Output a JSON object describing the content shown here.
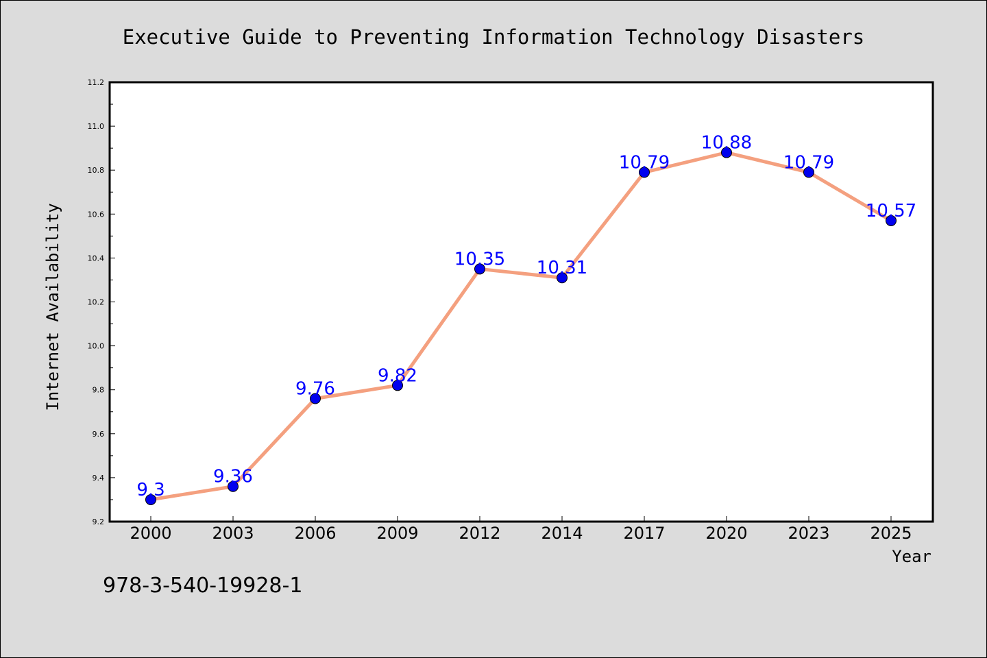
{
  "chart_data": {
    "type": "line",
    "title": "Executive Guide to Preventing Information Technology Disasters",
    "xlabel": "Year",
    "ylabel": "Internet Availability",
    "categories": [
      "2000",
      "2003",
      "2006",
      "2009",
      "2012",
      "2014",
      "2017",
      "2020",
      "2023",
      "2025"
    ],
    "series": [
      {
        "values": [
          9.3,
          9.36,
          9.76,
          9.82,
          10.35,
          10.31,
          10.79,
          10.88,
          10.79,
          10.57
        ],
        "labels": [
          "9.3",
          "9.36",
          "9.76",
          "9.82",
          "10.35",
          "10.31",
          "10.79",
          "10.88",
          "10.79",
          "10.57"
        ],
        "line_color": "#f4a07f",
        "marker_color": "#0000ee"
      }
    ],
    "ylim": [
      9.2,
      11.2
    ],
    "yticks": [
      "9.2",
      "9.4",
      "9.6",
      "9.8",
      "10.0",
      "10.2",
      "10.4",
      "10.6",
      "10.8",
      "11.0",
      "11.2"
    ],
    "grid": false,
    "legend": "none"
  },
  "footer": {
    "isbn": "978-3-540-19928-1"
  }
}
